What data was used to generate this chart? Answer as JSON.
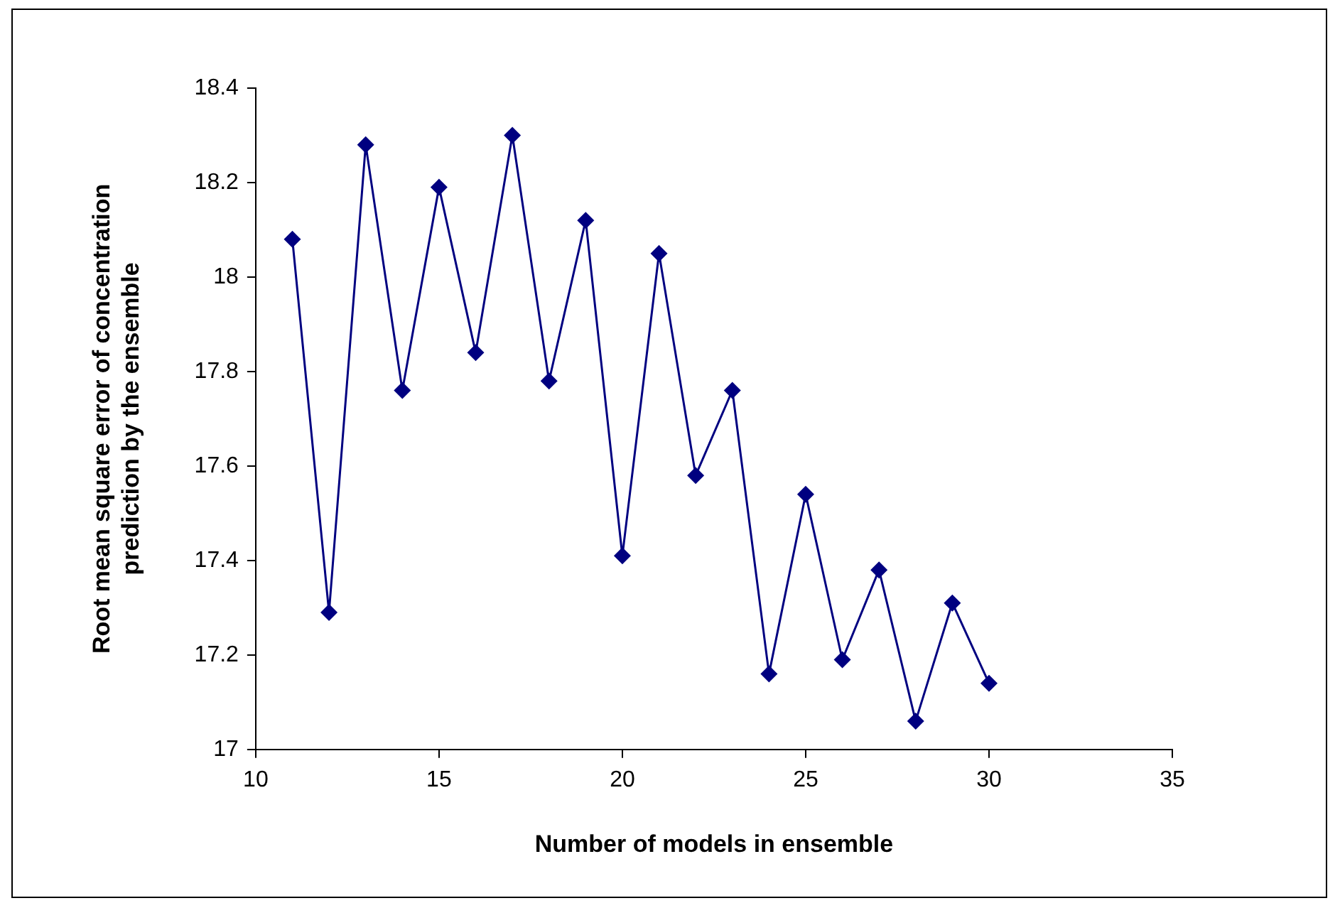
{
  "chart_data": {
    "type": "line",
    "xlabel": "Number of models in ensemble",
    "ylabel": "Root mean square error of concentration prediction by the ensemble",
    "x": [
      11,
      12,
      13,
      14,
      15,
      16,
      17,
      18,
      19,
      20,
      21,
      22,
      23,
      24,
      25,
      26,
      27,
      28,
      29,
      30
    ],
    "series": [
      {
        "color": "#000080",
        "values": [
          18.08,
          17.29,
          18.28,
          17.76,
          18.19,
          17.84,
          18.3,
          17.78,
          18.12,
          17.41,
          18.05,
          17.58,
          17.76,
          17.16,
          17.54,
          17.19,
          17.38,
          17.06,
          17.31,
          17.14
        ]
      }
    ],
    "xlim": [
      10,
      35
    ],
    "xticks": [
      10,
      15,
      20,
      25,
      30,
      35
    ],
    "ylim": [
      17,
      18.4
    ],
    "yticks": [
      17,
      17.2,
      17.4,
      17.6,
      17.8,
      18,
      18.2,
      18.4
    ],
    "grid": false,
    "legend": false,
    "marker": "diamond",
    "line_style": "solid"
  }
}
